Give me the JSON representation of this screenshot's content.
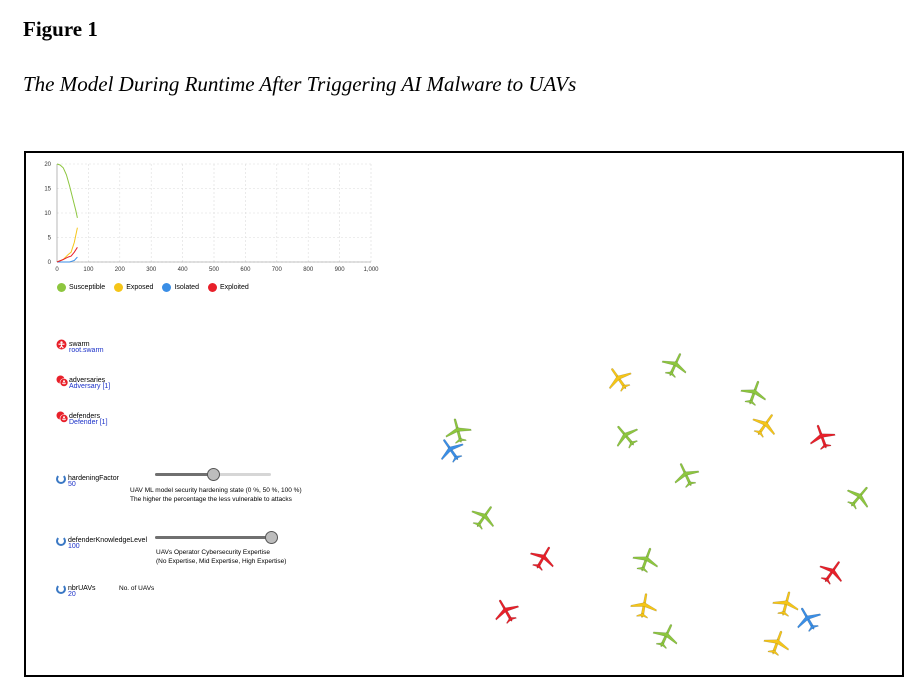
{
  "figure_label": "Figure 1",
  "figure_title": "The Model During Runtime After Triggering AI Malware to UAVs",
  "colors": {
    "susceptible": "#8dc63f",
    "exposed": "#f5c518",
    "isolated": "#3a8ee6",
    "exploited": "#e8202a"
  },
  "chart_data": {
    "type": "line",
    "xlim": [
      0,
      1000
    ],
    "ylim": [
      0,
      20
    ],
    "x_ticks": [
      "0",
      "100",
      "200",
      "300",
      "400",
      "500",
      "600",
      "700",
      "800",
      "900",
      "1,000"
    ],
    "y_ticks": [
      "0",
      "5",
      "10",
      "15",
      "20"
    ],
    "grid": true,
    "legend_position": "bottom",
    "series": [
      {
        "name": "Susceptible",
        "color": "#8dc63f",
        "points": [
          [
            0,
            20
          ],
          [
            10,
            19.8
          ],
          [
            20,
            19.2
          ],
          [
            30,
            17.8
          ],
          [
            40,
            15.5
          ],
          [
            50,
            13
          ],
          [
            60,
            10.5
          ],
          [
            65,
            9
          ]
        ]
      },
      {
        "name": "Exposed",
        "color": "#f5c518",
        "points": [
          [
            0,
            0
          ],
          [
            20,
            0.5
          ],
          [
            35,
            1.5
          ],
          [
            45,
            2
          ],
          [
            55,
            4
          ],
          [
            65,
            7
          ]
        ]
      },
      {
        "name": "Isolated",
        "color": "#3a8ee6",
        "points": [
          [
            0,
            0
          ],
          [
            40,
            0
          ],
          [
            55,
            0.3
          ],
          [
            65,
            1
          ]
        ]
      },
      {
        "name": "Exploited",
        "color": "#e8202a",
        "points": [
          [
            0,
            0
          ],
          [
            20,
            0.5
          ],
          [
            35,
            1
          ],
          [
            45,
            1.2
          ],
          [
            55,
            2
          ],
          [
            65,
            3
          ]
        ]
      }
    ]
  },
  "agents": [
    {
      "name": "swarm",
      "sub": "root.swarm",
      "icon": "agent-root-icon"
    },
    {
      "name": "adversaries",
      "sub": "Adversary [1]",
      "icon": "agent-population-icon"
    },
    {
      "name": "defenders",
      "sub": "Defender [1]",
      "icon": "agent-population-icon"
    }
  ],
  "params": {
    "hardening": {
      "name": "hardeningFactor",
      "value": "50",
      "level": 0.5,
      "caption_line1": "UAV ML model security hardening state (0 %, 50 %, 100 %)",
      "caption_line2": "The higher the percentage the less vulnerable to attacks"
    },
    "knowledge": {
      "name": "defenderKnowledgeLevel",
      "value": "100",
      "level": 1.0,
      "caption_line1": "UAVs Operator Cybersecurity Expertise",
      "caption_line2": "(No Expertise, Mid Expertise, High Expertise)"
    },
    "nbr": {
      "name": "nbrUAVs",
      "value": "20",
      "caption_line1": "No. of UAVs"
    }
  },
  "uavs": [
    {
      "state": "exposed",
      "angle": -35
    },
    {
      "state": "susceptible",
      "angle": 25
    },
    {
      "state": "susceptible",
      "angle": 20
    },
    {
      "state": "exposed",
      "angle": 35
    },
    {
      "state": "exploited",
      "angle": -20
    },
    {
      "state": "susceptible",
      "angle": -40
    },
    {
      "state": "isolated",
      "angle": -35
    },
    {
      "state": "susceptible",
      "angle": -15
    },
    {
      "state": "susceptible",
      "angle": 35
    },
    {
      "state": "susceptible",
      "angle": -25
    },
    {
      "state": "susceptible",
      "angle": 40
    },
    {
      "state": "exploited",
      "angle": 30
    },
    {
      "state": "susceptible",
      "angle": 20
    },
    {
      "state": "exploited",
      "angle": 35
    },
    {
      "state": "exploited",
      "angle": -30
    },
    {
      "state": "exposed",
      "angle": 10
    },
    {
      "state": "exposed",
      "angle": 15
    },
    {
      "state": "isolated",
      "angle": -30
    },
    {
      "state": "susceptible",
      "angle": 25
    },
    {
      "state": "exposed",
      "angle": 20
    }
  ]
}
